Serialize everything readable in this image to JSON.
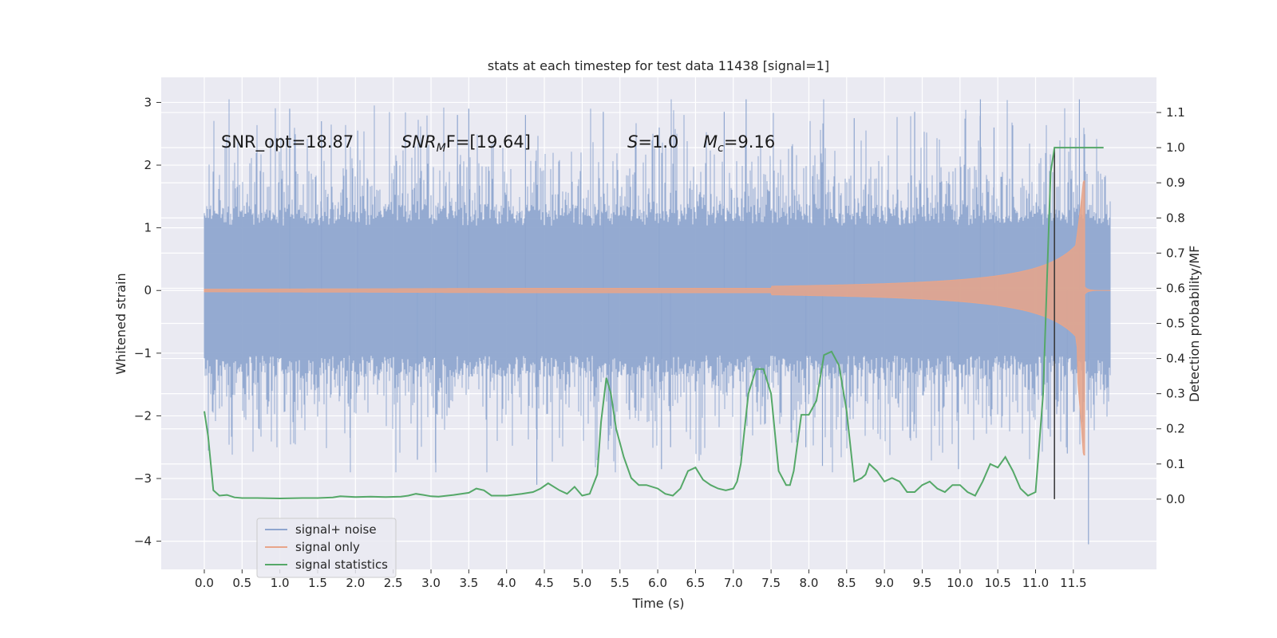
{
  "chart_data": {
    "type": "line",
    "title": "stats at each timestep for test data 11438 [signal=1]",
    "xlabel": "Time (s)",
    "ylabel": "Whitened strain",
    "y2label": "Detection probability/MF",
    "xlim": [
      -0.57,
      12.6
    ],
    "ylim": [
      -4.45,
      3.4
    ],
    "y2lim": [
      -0.2,
      1.2
    ],
    "xticks": [
      "0.0",
      "0.5",
      "1.0",
      "1.5",
      "2.0",
      "2.5",
      "3.0",
      "3.5",
      "4.0",
      "4.5",
      "5.0",
      "5.5",
      "6.0",
      "6.5",
      "7.0",
      "7.5",
      "8.0",
      "8.5",
      "9.0",
      "9.5",
      "10.0",
      "10.5",
      "11.0",
      "11.5"
    ],
    "yticks": [
      "3",
      "2",
      "1",
      "0",
      "−1",
      "−2",
      "−3",
      "−4"
    ],
    "y2ticks": [
      "1.1",
      "1.0",
      "0.9",
      "0.8",
      "0.7",
      "0.6",
      "0.5",
      "0.4",
      "0.3",
      "0.2",
      "0.1",
      "0.0"
    ],
    "grid": true,
    "legend_position": "lower-left",
    "annotations": {
      "snr_opt": "SNR_opt=18.87",
      "snr_mf_main": "SNR",
      "snr_mf_sub": "M",
      "snr_mf_rest": "F=[19.64]",
      "s_main": "S",
      "s_rest": "=1.0",
      "mc_main": "M",
      "mc_sub": "c",
      "mc_rest": "=9.16"
    },
    "marker_time": 11.25,
    "series": [
      {
        "name": "signal+ noise",
        "color": "#8fa6cf",
        "envelope": {
          "time_range": [
            0.0,
            11.99
          ],
          "typical_amplitude": 1.15,
          "peak_max": 3.05,
          "peak_min": -4.05
        }
      },
      {
        "name": "signal only",
        "color": "#e8a58a",
        "chirp": {
          "start_time": 7.5,
          "merger_time": 11.65,
          "peak_amplitude": 1.75,
          "min_amplitude": -2.7
        }
      },
      {
        "name": "signal statistics",
        "color": "#55a868",
        "axis": "right",
        "x": [
          0.0,
          0.05,
          0.12,
          0.2,
          0.3,
          0.4,
          0.5,
          0.7,
          1.0,
          1.3,
          1.5,
          1.7,
          1.8,
          2.0,
          2.2,
          2.4,
          2.6,
          2.7,
          2.8,
          2.9,
          3.0,
          3.1,
          3.3,
          3.5,
          3.6,
          3.7,
          3.8,
          4.0,
          4.2,
          4.35,
          4.45,
          4.55,
          4.7,
          4.8,
          4.9,
          5.0,
          5.1,
          5.2,
          5.25,
          5.32,
          5.38,
          5.45,
          5.55,
          5.65,
          5.75,
          5.85,
          6.0,
          6.1,
          6.2,
          6.3,
          6.4,
          6.5,
          6.6,
          6.7,
          6.8,
          6.9,
          7.0,
          7.05,
          7.1,
          7.2,
          7.3,
          7.4,
          7.5,
          7.6,
          7.7,
          7.75,
          7.8,
          7.9,
          8.0,
          8.1,
          8.2,
          8.3,
          8.4,
          8.5,
          8.6,
          8.7,
          8.75,
          8.8,
          8.9,
          9.0,
          9.1,
          9.2,
          9.3,
          9.4,
          9.5,
          9.6,
          9.7,
          9.8,
          9.9,
          10.0,
          10.1,
          10.2,
          10.3,
          10.4,
          10.5,
          10.6,
          10.7,
          10.8,
          10.9,
          11.0,
          11.1,
          11.2,
          11.25,
          11.3,
          11.35,
          11.42,
          11.9
        ],
        "values": [
          0.25,
          0.18,
          0.025,
          0.01,
          0.012,
          0.005,
          0.003,
          0.003,
          0.002,
          0.003,
          0.003,
          0.005,
          0.008,
          0.006,
          0.007,
          0.006,
          0.007,
          0.01,
          0.015,
          0.012,
          0.008,
          0.007,
          0.012,
          0.018,
          0.03,
          0.025,
          0.01,
          0.01,
          0.015,
          0.02,
          0.03,
          0.045,
          0.025,
          0.015,
          0.035,
          0.01,
          0.015,
          0.07,
          0.22,
          0.345,
          0.3,
          0.2,
          0.12,
          0.06,
          0.04,
          0.04,
          0.03,
          0.015,
          0.01,
          0.03,
          0.08,
          0.09,
          0.055,
          0.04,
          0.03,
          0.025,
          0.03,
          0.05,
          0.1,
          0.3,
          0.37,
          0.37,
          0.3,
          0.08,
          0.04,
          0.04,
          0.08,
          0.24,
          0.24,
          0.28,
          0.41,
          0.42,
          0.38,
          0.25,
          0.05,
          0.06,
          0.07,
          0.1,
          0.08,
          0.05,
          0.06,
          0.05,
          0.02,
          0.02,
          0.04,
          0.05,
          0.03,
          0.02,
          0.04,
          0.04,
          0.02,
          0.01,
          0.05,
          0.1,
          0.09,
          0.12,
          0.08,
          0.03,
          0.01,
          0.02,
          0.3,
          0.93,
          1.0,
          1.0,
          1.0,
          1.0,
          1.0
        ]
      }
    ]
  }
}
